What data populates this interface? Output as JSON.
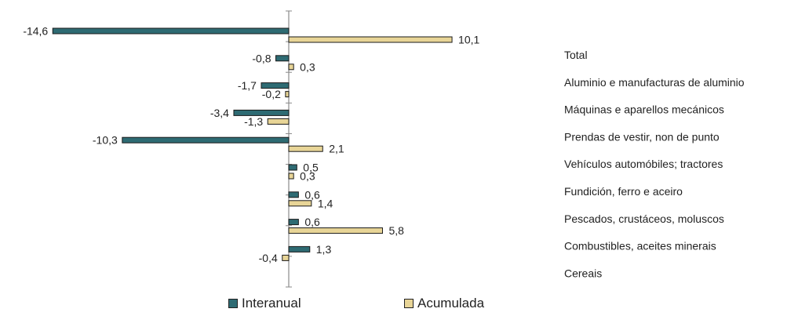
{
  "chart_data": {
    "type": "bar",
    "orientation": "horizontal",
    "categories": [
      "Total",
      "Aluminio e manufacturas de aluminio",
      "Máquinas e aparellos mecánicos",
      "Prendas de vestir, non de punto",
      "Vehículos automóbiles; tractores",
      "Fundición, ferro e aceiro",
      "Pescados, crustáceos, moluscos",
      "Combustibles, aceites minerais",
      "Cereais"
    ],
    "series": [
      {
        "name": "Interanual",
        "color": "#2e6b73",
        "values": [
          -14.6,
          -0.8,
          -1.7,
          -3.4,
          -10.3,
          0.5,
          0.6,
          0.6,
          1.3
        ],
        "labels": [
          "-14,6",
          "-0,8",
          "-1,7",
          "-3,4",
          "-10,3",
          "0,5",
          "0,6",
          "0,6",
          "1,3"
        ]
      },
      {
        "name": "Acumulada",
        "color": "#e8d597",
        "values": [
          10.1,
          0.3,
          -0.2,
          -1.3,
          2.1,
          0.3,
          1.4,
          5.8,
          -0.4
        ],
        "labels": [
          "10,1",
          "0,3",
          "-0,2",
          "-1,3",
          "2,1",
          "0,3",
          "1,4",
          "5,8",
          "-0,4"
        ]
      }
    ],
    "xlim": [
      -15,
      11
    ],
    "grid": false,
    "legend_position": "bottom"
  }
}
